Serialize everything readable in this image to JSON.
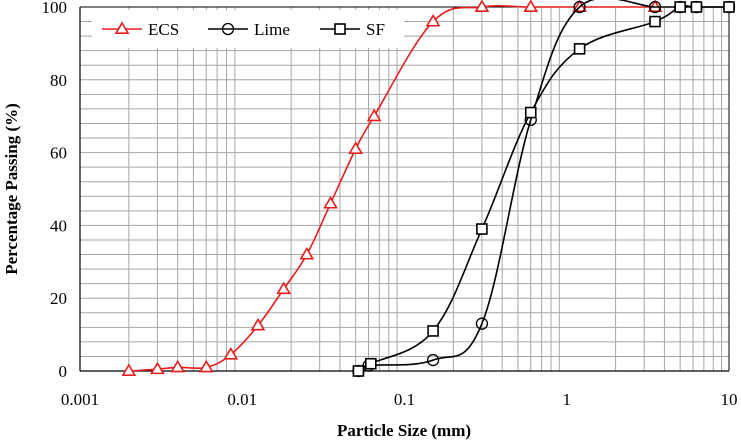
{
  "chart_data": {
    "type": "scatter",
    "xscale": "log",
    "xlim": [
      0.001,
      10
    ],
    "ylim": [
      0,
      100
    ],
    "xlabel": "Particle Size (mm)",
    "ylabel": "Percentage Passing (%)",
    "grid": true,
    "legend_position": "top-left",
    "x_tick_labels": [
      "0.001",
      "0.01",
      "0.1",
      "1",
      "10"
    ],
    "y_tick_labels": [
      "0",
      "20",
      "40",
      "60",
      "80",
      "100"
    ],
    "series": [
      {
        "name": "ECS",
        "color": "#e81c1c",
        "marker": "triangle",
        "x": [
          0.002,
          0.003,
          0.004,
          0.006,
          0.0085,
          0.0125,
          0.018,
          0.025,
          0.035,
          0.05,
          0.065,
          0.15,
          0.3,
          0.6,
          1.2,
          3.5
        ],
        "y": [
          0,
          0.5,
          1,
          1,
          4.5,
          12.5,
          22.5,
          32,
          46,
          61,
          70,
          96,
          100,
          100,
          100,
          100
        ]
      },
      {
        "name": "Lime",
        "color": "#000000",
        "marker": "circle",
        "x": [
          0.052,
          0.06,
          0.15,
          0.3,
          0.6,
          1.2,
          3.5,
          5,
          6.3,
          10
        ],
        "y": [
          0,
          1.5,
          3,
          13,
          69,
          100,
          100,
          100,
          100,
          100
        ]
      },
      {
        "name": "SF",
        "color": "#000000",
        "marker": "square",
        "x": [
          0.052,
          0.062,
          0.15,
          0.3,
          0.6,
          1.2,
          3.5,
          5,
          6.3,
          10
        ],
        "y": [
          0,
          2,
          11,
          39,
          71,
          88.5,
          96,
          100,
          100,
          100
        ]
      }
    ]
  }
}
